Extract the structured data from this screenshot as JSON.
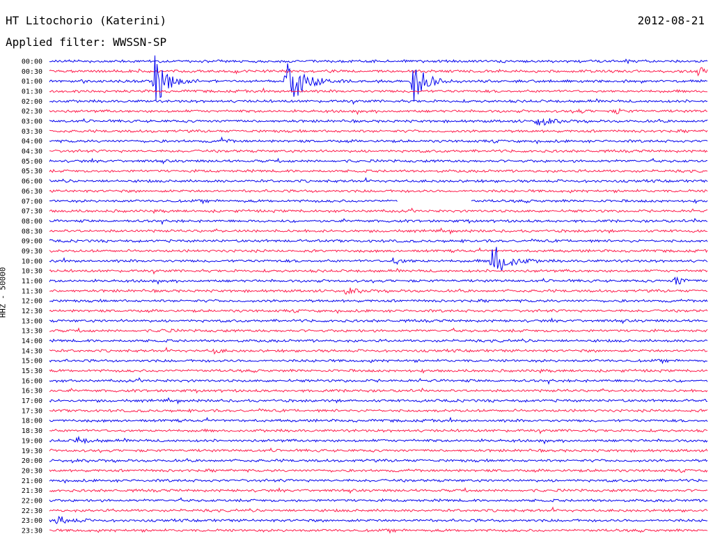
{
  "header": {
    "station": "HT Litochorio (Katerini)",
    "date": "2012-08-21",
    "filter": "Applied filter: WWSSN-SP"
  },
  "axis": {
    "ylabel": "HHZ - 50000"
  },
  "colors": {
    "trace_a": "#0000ee",
    "trace_b": "#ff1a4a",
    "background": "#ffffff"
  },
  "chart_data": {
    "type": "line",
    "description_type": "helicorder",
    "row_labels": [
      "00:00",
      "00:30",
      "01:00",
      "01:30",
      "02:00",
      "02:30",
      "03:00",
      "03:30",
      "04:00",
      "04:30",
      "05:00",
      "05:30",
      "06:00",
      "06:30",
      "07:00",
      "07:30",
      "08:00",
      "08:30",
      "09:00",
      "09:30",
      "10:00",
      "10:30",
      "11:00",
      "11:30",
      "12:00",
      "12:30",
      "13:00",
      "13:30",
      "14:00",
      "14:30",
      "15:00",
      "15:30",
      "16:00",
      "16:30",
      "17:00",
      "17:30",
      "18:00",
      "18:30",
      "19:00",
      "19:30",
      "20:00",
      "20:30",
      "21:00",
      "21:30",
      "22:00",
      "22:30",
      "23:00",
      "23:30"
    ],
    "ylabel": "HHZ - 50000",
    "events": [
      {
        "row": 2,
        "pos": 0.16,
        "amp": 40,
        "dur": 0.02
      },
      {
        "row": 2,
        "pos": 0.36,
        "amp": 50,
        "dur": 0.025
      },
      {
        "row": 2,
        "pos": 0.55,
        "amp": 40,
        "dur": 0.02
      },
      {
        "row": 1,
        "pos": 0.985,
        "amp": 6,
        "dur": 0.02
      },
      {
        "row": 6,
        "pos": 0.74,
        "amp": 8,
        "dur": 0.02
      },
      {
        "row": 5,
        "pos": 0.8,
        "amp": 4,
        "dur": 0.01
      },
      {
        "row": 5,
        "pos": 0.86,
        "amp": 5,
        "dur": 0.01
      },
      {
        "row": 8,
        "pos": 0.26,
        "amp": 4,
        "dur": 0.01
      },
      {
        "row": 20,
        "pos": 0.67,
        "amp": 32,
        "dur": 0.025
      },
      {
        "row": 20,
        "pos": 0.52,
        "amp": 5,
        "dur": 0.02
      },
      {
        "row": 22,
        "pos": 0.95,
        "amp": 10,
        "dur": 0.012
      },
      {
        "row": 23,
        "pos": 0.45,
        "amp": 4,
        "dur": 0.02
      },
      {
        "row": 27,
        "pos": 0.17,
        "amp": 4,
        "dur": 0.01
      },
      {
        "row": 29,
        "pos": 0.25,
        "amp": 6,
        "dur": 0.008
      },
      {
        "row": 38,
        "pos": 0.04,
        "amp": 5,
        "dur": 0.02
      },
      {
        "row": 46,
        "pos": 0.01,
        "amp": 8,
        "dur": 0.02
      }
    ],
    "gaps": [
      {
        "row": 14,
        "start": 0.53,
        "end": 0.64
      }
    ]
  }
}
